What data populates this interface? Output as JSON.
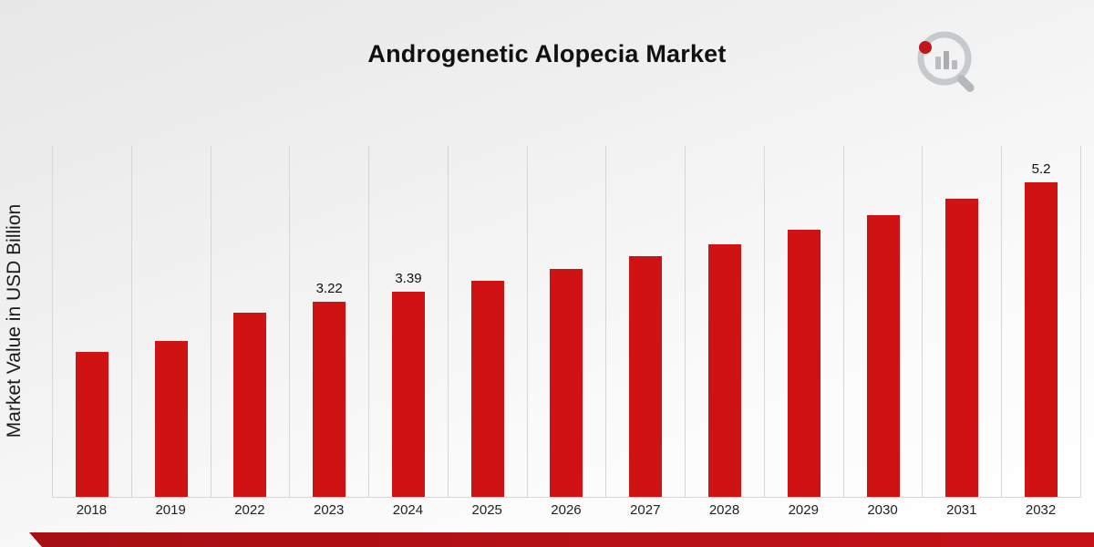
{
  "title": "Androgenetic Alopecia Market",
  "ylabel": "Market Value in USD Billion",
  "logo": {
    "name": "market-research-logo"
  },
  "colors": {
    "bar": "#cf1212",
    "stripe_dark": "#a50f14",
    "stripe_light": "#c41318",
    "grid": "#d6d6d6"
  },
  "chart_data": {
    "type": "bar",
    "title": "Androgenetic Alopecia Market",
    "xlabel": "",
    "ylabel": "Market Value in USD Billion",
    "categories": [
      "2018",
      "2019",
      "2022",
      "2023",
      "2024",
      "2025",
      "2026",
      "2027",
      "2028",
      "2029",
      "2030",
      "2031",
      "2032"
    ],
    "values": [
      2.4,
      2.58,
      3.05,
      3.22,
      3.39,
      3.57,
      3.76,
      3.97,
      4.18,
      4.41,
      4.65,
      4.92,
      5.2
    ],
    "data_labels": [
      "",
      "",
      "",
      "3.22",
      "3.39",
      "",
      "",
      "",
      "",
      "",
      "",
      "",
      "5.2"
    ],
    "ylim": [
      0,
      5.8
    ],
    "grid": "vertical",
    "legend": "none",
    "bar_color": "#cf1212"
  }
}
